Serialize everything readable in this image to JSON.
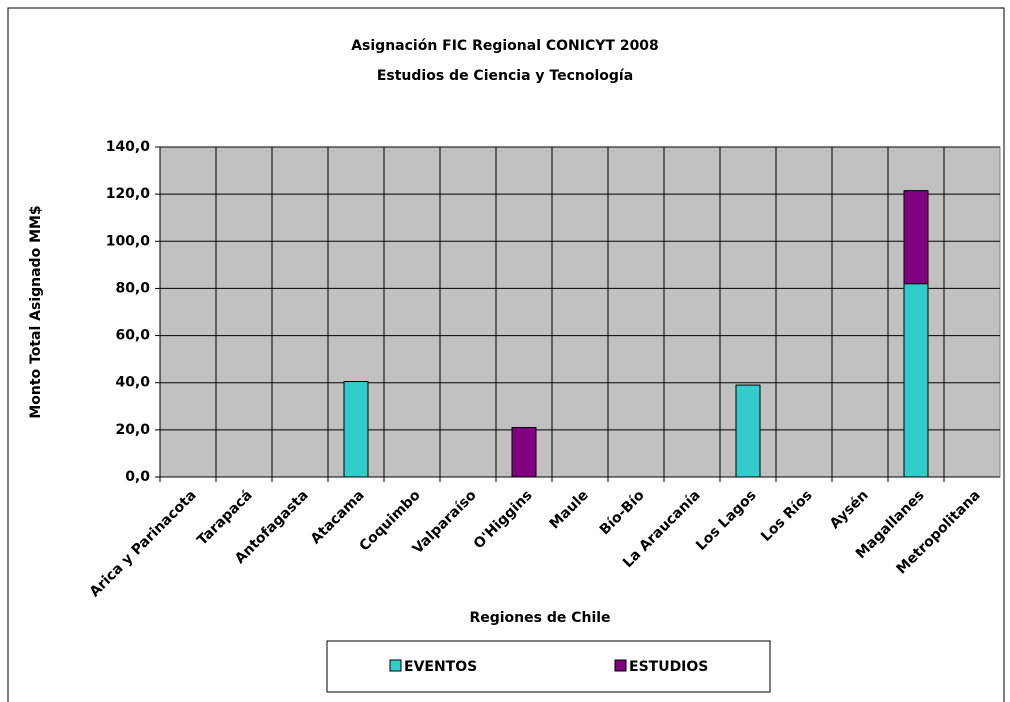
{
  "chart_data": {
    "type": "stacked_bar",
    "title": "Asignación FIC Regional CONICYT 2008",
    "subtitle": "Estudios de Ciencia y Tecnología",
    "x_label": "Regiones de Chile",
    "y_label": "Monto Total Asignado MM$",
    "categories": [
      "Arica y Parinacota",
      "Tarapacá",
      "Antofagasta",
      "Atacama",
      "Coquimbo",
      "Valparaíso",
      "O'Higgins",
      "Maule",
      "Bío-Bío",
      "La Araucanía",
      "Los Lagos",
      "Los Ríos",
      "Aysén",
      "Magallanes",
      "Metropolitana"
    ],
    "series": [
      {
        "name": "EVENTOS",
        "color": "#33cccc",
        "values": [
          0,
          0,
          0,
          40.5,
          0,
          0,
          0,
          0,
          0,
          0,
          39,
          0,
          0,
          82,
          0
        ]
      },
      {
        "name": "ESTUDIOS",
        "color": "#800080",
        "values": [
          0,
          0,
          0,
          0,
          0,
          0,
          21,
          0,
          0,
          0,
          0,
          0,
          0,
          39.5,
          0
        ]
      }
    ],
    "ylim": [
      0,
      140
    ],
    "yticks": [
      {
        "value": 0,
        "label": "0,0"
      },
      {
        "value": 20,
        "label": "20,0"
      },
      {
        "value": 40,
        "label": "40,0"
      },
      {
        "value": 60,
        "label": "60,0"
      },
      {
        "value": 80,
        "label": "80,0"
      },
      {
        "value": 100,
        "label": "100,0"
      },
      {
        "value": 120,
        "label": "120,0"
      },
      {
        "value": 140,
        "label": "140,0"
      }
    ],
    "grid": true,
    "legend": "bottom"
  }
}
